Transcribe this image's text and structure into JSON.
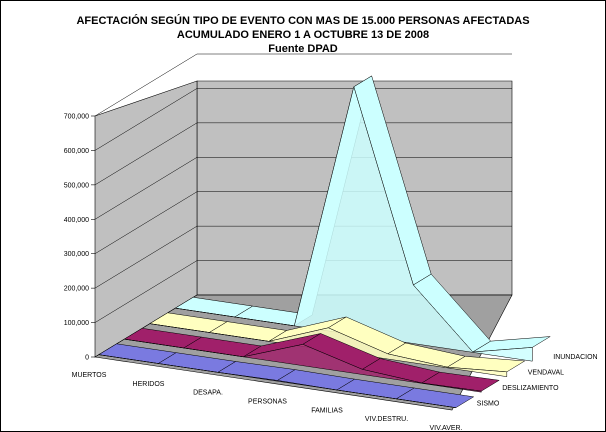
{
  "chart_data": {
    "type": "area",
    "title": [
      "AFECTACIÓN SEGÚN TIPO DE EVENTO CON MAS DE 15.000 PERSONAS AFECTADAS",
      "ACUMULADO ENERO 1 A OCTUBRE 13 DE 2008",
      "Fuente DPAD"
    ],
    "categories": [
      "MUERTOS",
      "HERIDOS",
      "DESAPA.",
      "PERSONAS",
      "FAMILIAS",
      "VIV.DESTRU.",
      "VIV.AVER."
    ],
    "ylim": [
      0,
      700000
    ],
    "yticks": [
      "0",
      "100,000",
      "200,000",
      "300,000",
      "400,000",
      "500,000",
      "600,000",
      "700,000"
    ],
    "series": [
      {
        "name": "SISMO",
        "color": "#7a7ae0",
        "values": [
          0,
          0,
          0,
          2000,
          0,
          0,
          0
        ]
      },
      {
        "name": "DESLIZAMIENTO",
        "color": "#a0206a",
        "values": [
          100,
          100,
          100,
          62000,
          15000,
          1000,
          3000
        ]
      },
      {
        "name": "VENDAVAL",
        "color": "#ffffc0",
        "values": [
          50,
          80,
          10,
          65000,
          15000,
          2000,
          14000
        ]
      },
      {
        "name": "INUNDACION",
        "color": "#ccffff",
        "values": [
          100,
          100,
          50,
          720000,
          170000,
          1000,
          40000
        ]
      }
    ]
  }
}
